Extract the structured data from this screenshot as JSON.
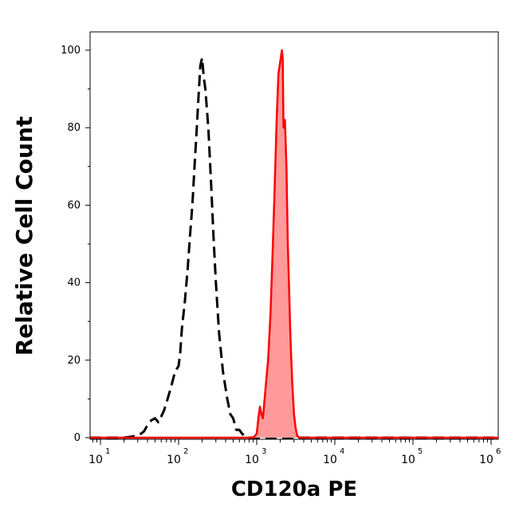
{
  "chart_data": {
    "type": "area",
    "xlabel": "CD120a PE",
    "ylabel": "Relative Cell Count",
    "xscale": "log",
    "xlim": [
      7,
      1200000
    ],
    "ylim": [
      0,
      100
    ],
    "yticks": [
      {
        "value": 0,
        "label": "0"
      },
      {
        "value": 20,
        "label": "20"
      },
      {
        "value": 40,
        "label": "40"
      },
      {
        "value": 60,
        "label": "60"
      },
      {
        "value": 80,
        "label": "80"
      },
      {
        "value": 100,
        "label": "100"
      }
    ],
    "xticks": [
      {
        "value": 10,
        "base": "10",
        "exp": "1"
      },
      {
        "value": 100,
        "base": "10",
        "exp": "2"
      },
      {
        "value": 1000,
        "base": "10",
        "exp": "3"
      },
      {
        "value": 10000,
        "base": "10",
        "exp": "4"
      },
      {
        "value": 100000,
        "base": "10",
        "exp": "5"
      },
      {
        "value": 1000000,
        "base": "10",
        "exp": "6"
      }
    ],
    "grid": false,
    "legend": "none",
    "series": [
      {
        "style": "dashed",
        "color": "#000000",
        "fill": "none",
        "points": [
          [
            7,
            0
          ],
          [
            20,
            0
          ],
          [
            26,
            0.3
          ],
          [
            30,
            0.8
          ],
          [
            33,
            1.0
          ],
          [
            36,
            1.6
          ],
          [
            40,
            3.2
          ],
          [
            45,
            4.5
          ],
          [
            50,
            5.0
          ],
          [
            55,
            4.0
          ],
          [
            60,
            5.5
          ],
          [
            65,
            7.0
          ],
          [
            70,
            9.0
          ],
          [
            80,
            13.0
          ],
          [
            90,
            17.0
          ],
          [
            100,
            18.5
          ],
          [
            105,
            22.0
          ],
          [
            110,
            28.0
          ],
          [
            120,
            35.0
          ],
          [
            130,
            43.0
          ],
          [
            140,
            52.0
          ],
          [
            150,
            60.0
          ],
          [
            160,
            70.0
          ],
          [
            170,
            79.0
          ],
          [
            180,
            88.0
          ],
          [
            190,
            96.0
          ],
          [
            200,
            98.0
          ],
          [
            210,
            93.0
          ],
          [
            220,
            90.0
          ],
          [
            240,
            80.0
          ],
          [
            260,
            66.0
          ],
          [
            280,
            52.0
          ],
          [
            300,
            40.0
          ],
          [
            330,
            27.0
          ],
          [
            370,
            17.0
          ],
          [
            420,
            10.0
          ],
          [
            460,
            6.0
          ],
          [
            500,
            5.0
          ],
          [
            550,
            2.0
          ],
          [
            600,
            2.0
          ],
          [
            650,
            1.0
          ],
          [
            700,
            0.5
          ],
          [
            800,
            0
          ],
          [
            2000000,
            0
          ]
        ]
      },
      {
        "style": "solid",
        "color": "#ff0000",
        "fill": "#ff9a9a",
        "points": [
          [
            7,
            0
          ],
          [
            900,
            0
          ],
          [
            950,
            0.5
          ],
          [
            1000,
            1.0
          ],
          [
            1050,
            5.0
          ],
          [
            1100,
            8.0
          ],
          [
            1150,
            6.0
          ],
          [
            1200,
            5.0
          ],
          [
            1250,
            9.0
          ],
          [
            1300,
            13.0
          ],
          [
            1400,
            20.0
          ],
          [
            1500,
            32.0
          ],
          [
            1600,
            48.0
          ],
          [
            1700,
            65.0
          ],
          [
            1800,
            82.0
          ],
          [
            1900,
            94.0
          ],
          [
            2000,
            97.0
          ],
          [
            2100,
            100.0
          ],
          [
            2150,
            98.0
          ],
          [
            2200,
            80.0
          ],
          [
            2300,
            82.0
          ],
          [
            2400,
            70.0
          ],
          [
            2500,
            50.0
          ],
          [
            2600,
            38.0
          ],
          [
            2700,
            26.0
          ],
          [
            2850,
            14.0
          ],
          [
            3000,
            6.0
          ],
          [
            3150,
            2.5
          ],
          [
            3300,
            0.5
          ],
          [
            3500,
            0
          ],
          [
            2000000,
            0
          ]
        ]
      }
    ]
  }
}
